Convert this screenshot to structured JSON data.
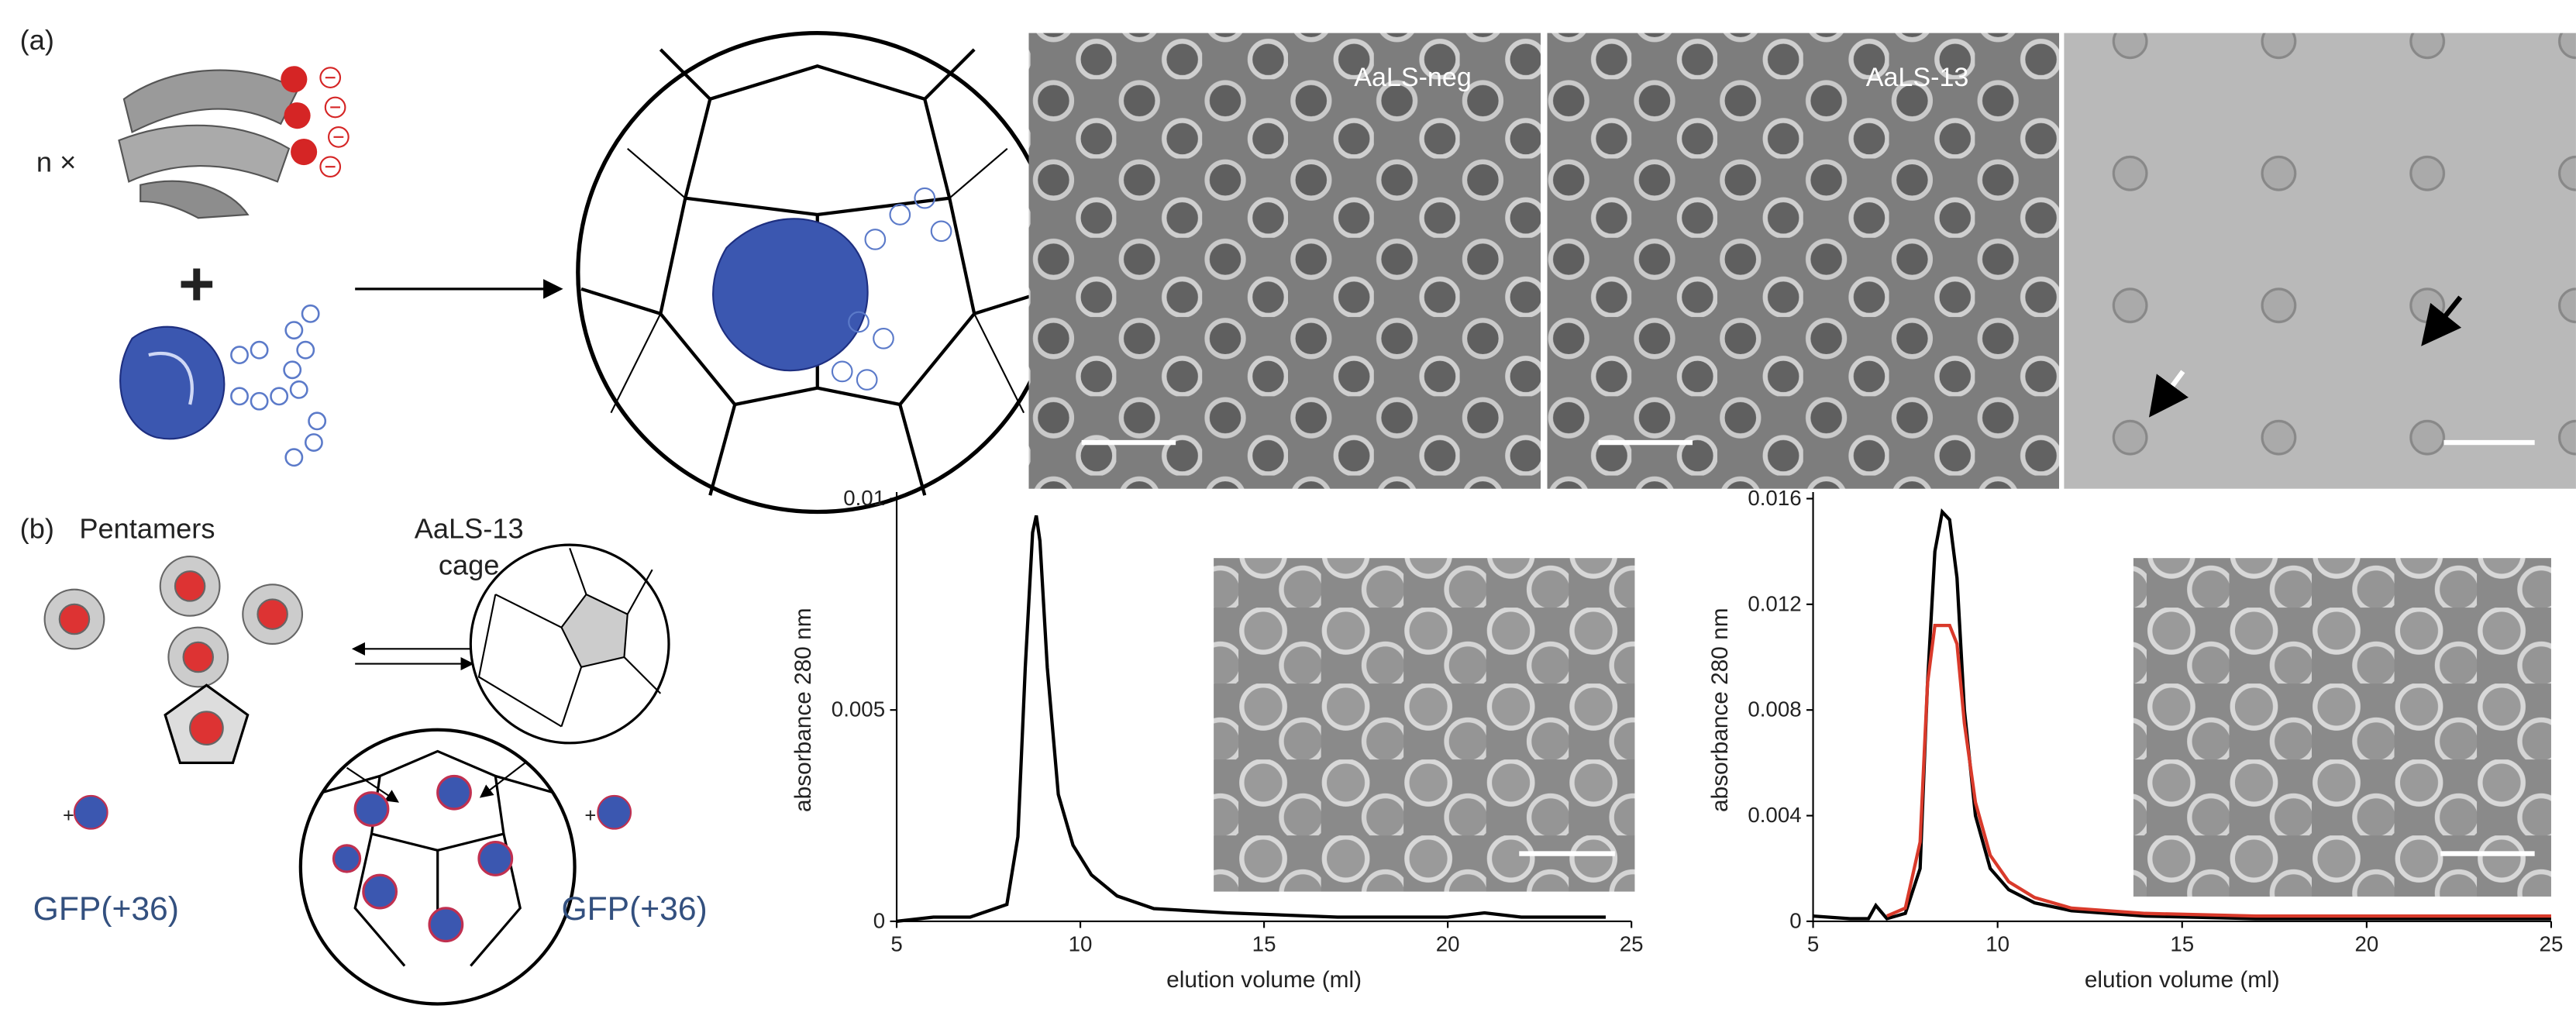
{
  "figure": {
    "panel_a": {
      "label": "(a)",
      "multiplier": "n ×",
      "tem_labels": [
        "AaLS-neg",
        "AaLS-13"
      ]
    },
    "panel_b": {
      "label": "(b)",
      "pentamers": "Pentamers",
      "cage": [
        "AaLS-13",
        "cage"
      ],
      "cargo": [
        "GFP(+36)",
        "GFP(+36)"
      ]
    }
  },
  "chart_data": [
    {
      "type": "line",
      "x": [
        5,
        6,
        7,
        8,
        8.3,
        8.5,
        8.7,
        8.8,
        8.9,
        9.1,
        9.4,
        9.8,
        10.3,
        11,
        12,
        14,
        17,
        20,
        21,
        22,
        24.3
      ],
      "series": [
        {
          "color": "#000000",
          "values": [
            0,
            0.0001,
            0.0001,
            0.0004,
            0.002,
            0.006,
            0.0092,
            0.0096,
            0.009,
            0.006,
            0.003,
            0.0018,
            0.0011,
            0.0006,
            0.0003,
            0.0002,
            0.0001,
            0.0001,
            0.0002,
            0.0001,
            0.0001
          ]
        }
      ],
      "xlim": [
        5,
        25
      ],
      "ylim": [
        0,
        0.01
      ],
      "xticks": [
        5,
        10,
        15,
        20,
        25
      ],
      "yticks": [
        0,
        0.005,
        0.01
      ],
      "xlabel": "elution volume (ml)",
      "ylabel": "absorbance 280 nm"
    },
    {
      "type": "line",
      "x": [
        5,
        6,
        6.5,
        6.7,
        7,
        7.5,
        7.9,
        8.1,
        8.3,
        8.5,
        8.7,
        8.9,
        9.1,
        9.4,
        9.8,
        10.3,
        11,
        12,
        14,
        17,
        20,
        23,
        25
      ],
      "series": [
        {
          "color": "#000000",
          "values": [
            0.0002,
            0.0001,
            0.0001,
            0.0006,
            0.0001,
            0.0003,
            0.002,
            0.009,
            0.014,
            0.0155,
            0.0152,
            0.013,
            0.008,
            0.004,
            0.002,
            0.0012,
            0.0007,
            0.0004,
            0.0002,
            0.0001,
            0.0001,
            0.0001,
            0.0001
          ]
        },
        {
          "color": "#d93a2b",
          "values": [
            null,
            null,
            null,
            null,
            0.0002,
            0.0005,
            0.003,
            0.009,
            0.0112,
            0.0112,
            0.0112,
            0.0105,
            0.0075,
            0.0045,
            0.0025,
            0.0015,
            0.0009,
            0.0005,
            0.0003,
            0.0002,
            0.0002,
            0.0002,
            0.0002
          ]
        }
      ],
      "xlim": [
        5,
        25
      ],
      "ylim": [
        0,
        0.016
      ],
      "xticks": [
        5,
        10,
        15,
        20,
        25
      ],
      "yticks": [
        0,
        0.004,
        0.008,
        0.012,
        0.016
      ],
      "xlabel": "elution volume (ml)",
      "ylabel": "absorbance 280 nm"
    }
  ]
}
